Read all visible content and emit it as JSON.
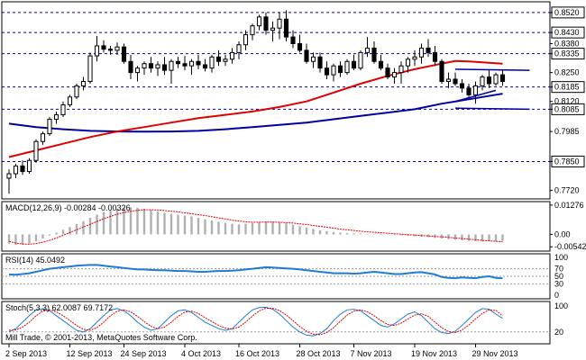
{
  "window": {
    "copyright": "Mill Trade, © 2001-2013, MetaQuotes Software Corp."
  },
  "colors": {
    "background": "#ffffff",
    "bull_candle": "#ffffff",
    "bear_candle": "#000000",
    "ma_fast": "#e00000",
    "ma_slow": "#0000a0",
    "level_line": "#0000a0",
    "macd_hist": "#b0b0b0",
    "macd_signal": "#e00000",
    "rsi_line": "#1e7bd8",
    "stoch_main": "#1e7bd8",
    "stoch_signal": "#e00000",
    "grid_dash": "#9a9a9a"
  },
  "chart_data": [
    {
      "type": "candlestick",
      "ylim": [
        0.769,
        0.856
      ],
      "y_ticks": [
        "0.8520",
        "0.8430",
        "0.8380",
        "0.8335",
        "0.8250",
        "0.8185",
        "0.8120",
        "0.8085",
        "0.7985",
        "0.7850",
        "0.7720"
      ],
      "highlighted_levels": [
        "0.8520",
        "0.8430",
        "0.8335",
        "0.8185",
        "0.8085",
        "0.7850"
      ],
      "x_ticks": [
        "2 Sep 2013",
        "12 Sep 2013",
        "24 Sep 2013",
        "4 Oct 2013",
        "16 Oct 2013",
        "28 Oct 2013",
        "7 Nov 2013",
        "19 Nov 2013",
        "29 Nov 2013"
      ],
      "candles": [
        [
          0.7775,
          0.7815,
          0.7705,
          0.7795
        ],
        [
          0.7795,
          0.784,
          0.7775,
          0.783
        ],
        [
          0.783,
          0.7855,
          0.779,
          0.7805
        ],
        [
          0.7805,
          0.7865,
          0.7795,
          0.7855
        ],
        [
          0.7855,
          0.795,
          0.7845,
          0.794
        ],
        [
          0.794,
          0.7985,
          0.7925,
          0.7975
        ],
        [
          0.7975,
          0.805,
          0.7965,
          0.804
        ],
        [
          0.804,
          0.8075,
          0.802,
          0.806
        ],
        [
          0.806,
          0.812,
          0.805,
          0.8105
        ],
        [
          0.8105,
          0.815,
          0.8095,
          0.814
        ],
        [
          0.814,
          0.82,
          0.813,
          0.819
        ],
        [
          0.819,
          0.823,
          0.817,
          0.821
        ],
        [
          0.821,
          0.834,
          0.82,
          0.8325
        ],
        [
          0.8325,
          0.8415,
          0.83,
          0.837
        ],
        [
          0.837,
          0.8395,
          0.834,
          0.8355
        ],
        [
          0.8355,
          0.837,
          0.833,
          0.835
        ],
        [
          0.835,
          0.8385,
          0.833,
          0.8365
        ],
        [
          0.8365,
          0.838,
          0.829,
          0.83
        ],
        [
          0.83,
          0.833,
          0.822,
          0.825
        ],
        [
          0.825,
          0.828,
          0.821,
          0.827
        ],
        [
          0.827,
          0.83,
          0.824,
          0.829
        ],
        [
          0.829,
          0.832,
          0.825,
          0.827
        ],
        [
          0.827,
          0.83,
          0.8235,
          0.8285
        ],
        [
          0.8285,
          0.832,
          0.824,
          0.826
        ],
        [
          0.826,
          0.831,
          0.82,
          0.83
        ],
        [
          0.83,
          0.832,
          0.827,
          0.829
        ],
        [
          0.829,
          0.8325,
          0.826,
          0.828
        ],
        [
          0.828,
          0.831,
          0.824,
          0.83
        ],
        [
          0.83,
          0.833,
          0.8265,
          0.8285
        ],
        [
          0.8285,
          0.831,
          0.8255,
          0.827
        ],
        [
          0.827,
          0.833,
          0.825,
          0.832
        ],
        [
          0.832,
          0.835,
          0.828,
          0.83
        ],
        [
          0.83,
          0.833,
          0.828,
          0.831
        ],
        [
          0.831,
          0.836,
          0.829,
          0.834
        ],
        [
          0.834,
          0.839,
          0.831,
          0.8375
        ],
        [
          0.8375,
          0.844,
          0.835,
          0.842
        ],
        [
          0.842,
          0.847,
          0.8395,
          0.846
        ],
        [
          0.846,
          0.851,
          0.844,
          0.85
        ],
        [
          0.85,
          0.852,
          0.842,
          0.844
        ],
        [
          0.844,
          0.848,
          0.839,
          0.845
        ],
        [
          0.845,
          0.852,
          0.84,
          0.849
        ],
        [
          0.849,
          0.853,
          0.839,
          0.841
        ],
        [
          0.841,
          0.844,
          0.836,
          0.838
        ],
        [
          0.838,
          0.842,
          0.834,
          0.835
        ],
        [
          0.835,
          0.838,
          0.829,
          0.83
        ],
        [
          0.83,
          0.834,
          0.827,
          0.832
        ],
        [
          0.832,
          0.834,
          0.825,
          0.827
        ],
        [
          0.827,
          0.83,
          0.822,
          0.824
        ],
        [
          0.824,
          0.829,
          0.821,
          0.828
        ],
        [
          0.828,
          0.83,
          0.823,
          0.825
        ],
        [
          0.825,
          0.831,
          0.824,
          0.83
        ],
        [
          0.83,
          0.833,
          0.826,
          0.827
        ],
        [
          0.827,
          0.835,
          0.826,
          0.834
        ],
        [
          0.834,
          0.841,
          0.832,
          0.836
        ],
        [
          0.836,
          0.839,
          0.829,
          0.83
        ],
        [
          0.83,
          0.833,
          0.826,
          0.827
        ],
        [
          0.827,
          0.829,
          0.822,
          0.823
        ],
        [
          0.823,
          0.827,
          0.82,
          0.825
        ],
        [
          0.825,
          0.83,
          0.82,
          0.828
        ],
        [
          0.828,
          0.832,
          0.825,
          0.831
        ],
        [
          0.831,
          0.835,
          0.828,
          0.832
        ],
        [
          0.832,
          0.838,
          0.829,
          0.836
        ],
        [
          0.836,
          0.84,
          0.832,
          0.834
        ],
        [
          0.834,
          0.837,
          0.828,
          0.83
        ],
        [
          0.83,
          0.831,
          0.82,
          0.821
        ],
        [
          0.821,
          0.825,
          0.818,
          0.822
        ],
        [
          0.822,
          0.825,
          0.819,
          0.82
        ],
        [
          0.82,
          0.822,
          0.816,
          0.818
        ],
        [
          0.818,
          0.82,
          0.814,
          0.815
        ],
        [
          0.815,
          0.821,
          0.811,
          0.819
        ],
        [
          0.819,
          0.824,
          0.817,
          0.823
        ],
        [
          0.823,
          0.826,
          0.818,
          0.82
        ],
        [
          0.82,
          0.825,
          0.819,
          0.824
        ],
        [
          0.824,
          0.826,
          0.819,
          0.821
        ]
      ],
      "overlays": [
        {
          "name": "fast MA",
          "color": "#e00000",
          "points": [
            [
              44,
              0.812
            ],
            [
              48,
              0.816
            ],
            [
              52,
              0.82
            ],
            [
              56,
              0.8235
            ],
            [
              60,
              0.8265
            ],
            [
              64,
              0.829
            ],
            [
              66,
              0.8302
            ],
            [
              68,
              0.83
            ],
            [
              70,
              0.8296
            ],
            [
              72,
              0.8292
            ],
            [
              73,
              0.829
            ]
          ]
        },
        {
          "name": "slow MA",
          "color": "#0000a0",
          "points": [
            [
              0,
              0.802
            ],
            [
              4,
              0.8005
            ],
            [
              8,
              0.7995
            ],
            [
              12,
              0.7988
            ],
            [
              16,
              0.7985
            ],
            [
              20,
              0.7984
            ],
            [
              24,
              0.7985
            ],
            [
              28,
              0.7988
            ],
            [
              32,
              0.7995
            ],
            [
              36,
              0.8005
            ],
            [
              40,
              0.8015
            ],
            [
              44,
              0.8025
            ],
            [
              48,
              0.804
            ],
            [
              52,
              0.8055
            ],
            [
              56,
              0.807
            ],
            [
              60,
              0.8085
            ],
            [
              64,
              0.811
            ],
            [
              68,
              0.813
            ],
            [
              70,
              0.814
            ],
            [
              72,
              0.815
            ],
            [
              73,
              0.8155
            ]
          ]
        },
        {
          "name": "fast MA early",
          "color": "#e00000",
          "points": [
            [
              0,
              0.787
            ],
            [
              4,
              0.79
            ],
            [
              8,
              0.793
            ],
            [
              12,
              0.796
            ],
            [
              16,
              0.7985
            ],
            [
              20,
              0.8005
            ],
            [
              24,
              0.8025
            ],
            [
              28,
              0.8045
            ],
            [
              32,
              0.806
            ],
            [
              36,
              0.8075
            ],
            [
              40,
              0.8095
            ],
            [
              44,
              0.812
            ]
          ]
        }
      ],
      "trend_lines": [
        {
          "from": [
            66,
            0.8265
          ],
          "to": [
            77,
            0.826
          ]
        },
        {
          "from": [
            66,
            0.809
          ],
          "to": [
            77,
            0.8085
          ]
        },
        {
          "from": [
            66,
            0.812
          ],
          "to": [
            72,
            0.817
          ]
        }
      ]
    },
    {
      "type": "macd",
      "title": "MACD(12,26,9) -0.00284 -0.00326",
      "ylim": [
        -0.0065,
        0.0135
      ],
      "y_ticks": [
        "0.01276",
        "0.00",
        "-0.00542"
      ],
      "histogram": [
        -0.004,
        -0.0046,
        -0.0045,
        -0.004,
        -0.003,
        -0.0018,
        -0.0005,
        0.0008,
        0.002,
        0.0032,
        0.0045,
        0.0058,
        0.0072,
        0.0086,
        0.0098,
        0.0106,
        0.0112,
        0.0116,
        0.0118,
        0.0116,
        0.0112,
        0.0106,
        0.01,
        0.0094,
        0.009,
        0.0086,
        0.0082,
        0.0078,
        0.0072,
        0.0066,
        0.006,
        0.0055,
        0.005,
        0.0046,
        0.0044,
        0.0046,
        0.005,
        0.0054,
        0.0056,
        0.0055,
        0.0052,
        0.0048,
        0.0042,
        0.0036,
        0.003,
        0.0024,
        0.0018,
        0.0014,
        0.001,
        0.0008,
        0.0006,
        0.0004,
        0.0003,
        0.0002,
        0.0002,
        0.0001,
        0.0,
        -0.0002,
        -0.0004,
        -0.0006,
        -0.0008,
        -0.001,
        -0.0012,
        -0.0015,
        -0.0018,
        -0.0021,
        -0.0024,
        -0.0026,
        -0.0028,
        -0.003,
        -0.0031,
        -0.003,
        -0.0029,
        -0.0028
      ],
      "signal": [
        -0.003,
        -0.0038,
        -0.0042,
        -0.0043,
        -0.004,
        -0.0034,
        -0.0026,
        -0.0016,
        -0.0004,
        0.0008,
        0.002,
        0.0032,
        0.0044,
        0.0056,
        0.0068,
        0.0078,
        0.0088,
        0.0095,
        0.0101,
        0.0105,
        0.0107,
        0.0107,
        0.0106,
        0.0104,
        0.0101,
        0.0098,
        0.0094,
        0.009,
        0.0086,
        0.0082,
        0.0077,
        0.0072,
        0.0067,
        0.0062,
        0.0058,
        0.0055,
        0.0053,
        0.0053,
        0.0054,
        0.0054,
        0.0053,
        0.0051,
        0.0049,
        0.0046,
        0.0043,
        0.0039,
        0.0035,
        0.0031,
        0.0027,
        0.0023,
        0.002,
        0.0017,
        0.0014,
        0.0011,
        0.0009,
        0.0007,
        0.0005,
        0.0003,
        0.0001,
        -0.0001,
        -0.0003,
        -0.0005,
        -0.0007,
        -0.0009,
        -0.0011,
        -0.0013,
        -0.0016,
        -0.0018,
        -0.0021,
        -0.0023,
        -0.0026,
        -0.0028,
        -0.003,
        -0.0032
      ]
    },
    {
      "type": "line",
      "title": "RSI(14) 45.0492",
      "ylim": [
        0,
        100
      ],
      "y_ticks": [
        "100",
        "70",
        "50",
        "30",
        "0"
      ],
      "levels": [
        70,
        50,
        30
      ],
      "values": [
        55,
        54,
        56,
        58,
        62,
        66,
        70,
        72,
        74,
        76,
        78,
        79,
        80,
        80,
        78,
        76,
        74,
        72,
        70,
        68,
        68,
        67,
        66,
        66,
        65,
        64,
        64,
        63,
        62,
        62,
        63,
        64,
        64,
        65,
        66,
        68,
        70,
        72,
        74,
        73,
        72,
        71,
        70,
        68,
        66,
        64,
        62,
        60,
        58,
        58,
        58,
        57,
        58,
        60,
        62,
        60,
        58,
        56,
        56,
        58,
        60,
        61,
        58,
        55,
        48,
        46,
        45,
        47,
        46,
        45,
        48,
        50,
        46,
        45
      ]
    },
    {
      "type": "line",
      "title": "Stoch(5,3,3) 62.0087 69.7172",
      "ylim": [
        0,
        100
      ],
      "y_ticks": [
        "100",
        "20"
      ],
      "series": [
        {
          "color": "#1e7bd8",
          "values": [
            20,
            30,
            50,
            70,
            88,
            92,
            85,
            70,
            55,
            40,
            25,
            20,
            30,
            50,
            70,
            88,
            92,
            85,
            70,
            50,
            35,
            25,
            30,
            50,
            70,
            85,
            88,
            80,
            65,
            50,
            40,
            30,
            25,
            30,
            50,
            70,
            88,
            95,
            96,
            90,
            75,
            55,
            35,
            20,
            10,
            8,
            15,
            30,
            55,
            75,
            88,
            90,
            85,
            70,
            55,
            40,
            35,
            45,
            60,
            75,
            82,
            70,
            50,
            30,
            18,
            15,
            22,
            40,
            60,
            80,
            92,
            90,
            75,
            62
          ]
        },
        {
          "color": "#e00000",
          "values": [
            25,
            26,
            35,
            50,
            70,
            84,
            88,
            82,
            70,
            55,
            40,
            28,
            25,
            33,
            50,
            70,
            84,
            88,
            82,
            68,
            52,
            37,
            30,
            35,
            50,
            68,
            81,
            84,
            77,
            64,
            52,
            40,
            32,
            29,
            35,
            50,
            69,
            85,
            93,
            93,
            86,
            72,
            55,
            37,
            22,
            13,
            11,
            18,
            33,
            53,
            72,
            84,
            88,
            82,
            70,
            55,
            43,
            40,
            47,
            60,
            72,
            76,
            68,
            50,
            33,
            21,
            18,
            26,
            41,
            60,
            77,
            88,
            86,
            70
          ]
        }
      ],
      "x_ticks": [
        "2 Sep 2013",
        "12 Sep 2013",
        "24 Sep 2013",
        "4 Oct 2013",
        "16 Oct 2013",
        "28 Oct 2013",
        "7 Nov 2013",
        "19 Nov 2013",
        "29 Nov 2013"
      ]
    }
  ]
}
